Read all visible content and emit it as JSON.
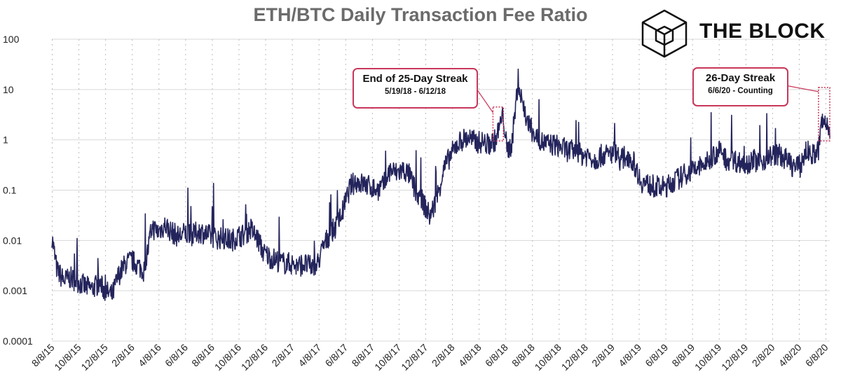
{
  "chart_data": {
    "type": "line",
    "title": "ETH/BTC Daily Transaction Fee Ratio",
    "xlabel": "",
    "ylabel": "",
    "y_scale": "log",
    "ylim": [
      0.0001,
      100
    ],
    "grid": "vertical-dashed",
    "line_color": "#24245c",
    "y_ticks": [
      "100",
      "10",
      "1",
      "0.1",
      "0.01",
      "0.001",
      "0.0001"
    ],
    "x_ticks": [
      "8/8/15",
      "10/8/15",
      "12/8/15",
      "2/8/16",
      "4/8/16",
      "6/8/16",
      "8/8/16",
      "10/8/16",
      "12/8/16",
      "2/8/17",
      "4/8/17",
      "6/8/17",
      "8/8/17",
      "10/8/17",
      "12/8/17",
      "2/8/18",
      "4/8/18",
      "6/8/18",
      "8/8/18",
      "10/8/18",
      "12/8/18",
      "2/8/19",
      "4/8/19",
      "6/8/19",
      "8/8/19",
      "10/8/19",
      "12/8/19",
      "2/8/20",
      "4/8/20",
      "6/8/20"
    ],
    "series": [
      {
        "x": [
          "2015-08-08",
          "2015-08-20",
          "2015-09-05",
          "2015-09-20",
          "2015-10-08",
          "2015-10-25",
          "2015-11-08",
          "2015-11-25",
          "2015-12-08",
          "2015-12-25",
          "2016-01-08",
          "2016-01-25",
          "2016-02-08",
          "2016-02-25",
          "2016-03-08",
          "2016-03-25",
          "2016-04-08",
          "2016-04-25",
          "2016-05-08",
          "2016-05-25",
          "2016-06-08",
          "2016-06-25",
          "2016-07-08",
          "2016-07-25",
          "2016-08-08",
          "2016-08-25",
          "2016-09-08",
          "2016-09-25",
          "2016-10-08",
          "2016-10-25",
          "2016-11-08",
          "2016-11-25",
          "2016-12-08",
          "2016-12-25",
          "2017-01-08",
          "2017-01-25",
          "2017-02-08",
          "2017-02-25",
          "2017-03-08",
          "2017-03-25",
          "2017-04-08",
          "2017-04-25",
          "2017-05-08",
          "2017-05-25",
          "2017-06-08",
          "2017-06-25",
          "2017-07-08",
          "2017-07-25",
          "2017-08-08",
          "2017-08-25",
          "2017-09-08",
          "2017-09-25",
          "2017-10-08",
          "2017-10-25",
          "2017-11-08",
          "2017-11-25",
          "2017-12-08",
          "2017-12-25",
          "2018-01-08",
          "2018-01-25",
          "2018-02-08",
          "2018-02-25",
          "2018-03-08",
          "2018-03-25",
          "2018-04-08",
          "2018-04-25",
          "2018-05-08",
          "2018-05-25",
          "2018-06-08",
          "2018-06-12",
          "2018-06-20",
          "2018-07-01",
          "2018-07-15",
          "2018-07-25",
          "2018-08-08",
          "2018-08-25",
          "2018-09-08",
          "2018-09-25",
          "2018-10-08",
          "2018-10-25",
          "2018-11-08",
          "2018-11-25",
          "2018-12-08",
          "2018-12-25",
          "2019-01-08",
          "2019-01-25",
          "2019-02-08",
          "2019-02-25",
          "2019-03-08",
          "2019-03-25",
          "2019-04-08",
          "2019-04-25",
          "2019-05-08",
          "2019-05-25",
          "2019-06-08",
          "2019-06-25",
          "2019-07-08",
          "2019-07-25",
          "2019-08-08",
          "2019-08-25",
          "2019-09-08",
          "2019-09-25",
          "2019-10-08",
          "2019-10-25",
          "2019-11-08",
          "2019-11-25",
          "2019-12-08",
          "2019-12-25",
          "2020-01-08",
          "2020-01-25",
          "2020-02-08",
          "2020-02-25",
          "2020-03-08",
          "2020-03-25",
          "2020-04-08",
          "2020-04-25",
          "2020-05-08",
          "2020-05-25",
          "2020-06-06",
          "2020-06-12",
          "2020-06-20",
          "2020-06-28",
          "2020-07-02"
        ],
        "y": [
          0.012,
          0.0025,
          0.0016,
          0.0018,
          0.0015,
          0.0012,
          0.0011,
          0.0014,
          0.001,
          0.0008,
          0.002,
          0.0035,
          0.004,
          0.003,
          0.0025,
          0.018,
          0.015,
          0.02,
          0.015,
          0.012,
          0.014,
          0.012,
          0.015,
          0.014,
          0.012,
          0.011,
          0.011,
          0.01,
          0.012,
          0.013,
          0.017,
          0.01,
          0.0055,
          0.0045,
          0.004,
          0.0035,
          0.0035,
          0.003,
          0.0035,
          0.003,
          0.003,
          0.008,
          0.013,
          0.02,
          0.04,
          0.12,
          0.15,
          0.13,
          0.12,
          0.1,
          0.12,
          0.25,
          0.22,
          0.25,
          0.2,
          0.08,
          0.06,
          0.03,
          0.06,
          0.25,
          0.45,
          0.8,
          1.0,
          1.1,
          0.9,
          0.9,
          0.8,
          1.0,
          2.5,
          3.0,
          0.6,
          0.8,
          12,
          6,
          2.0,
          1.2,
          0.9,
          0.8,
          0.8,
          0.7,
          0.6,
          0.6,
          0.5,
          0.5,
          0.4,
          0.5,
          0.5,
          0.6,
          0.4,
          0.5,
          0.35,
          0.15,
          0.13,
          0.12,
          0.11,
          0.12,
          0.15,
          0.18,
          0.22,
          0.25,
          0.3,
          0.35,
          0.5,
          0.6,
          0.4,
          0.4,
          0.35,
          0.35,
          0.4,
          0.35,
          0.45,
          0.5,
          0.5,
          0.4,
          0.3,
          0.3,
          0.6,
          0.5,
          0.6,
          2.0,
          2.3,
          1.8,
          1.6
        ]
      }
    ],
    "annotations": [
      {
        "title": "End of 25-Day Streak",
        "subtitle": "5/19/18 - 6/12/18"
      },
      {
        "title": "26-Day Streak",
        "subtitle": "6/6/20 - Counting"
      }
    ]
  },
  "branding": {
    "logo_text": "THE BLOCK",
    "logo_icon": "cube-icon"
  },
  "colors": {
    "series": "#24245c",
    "highlight": "#c8375a",
    "title": "#6b6b6b",
    "grid": "#bbbbbb"
  }
}
